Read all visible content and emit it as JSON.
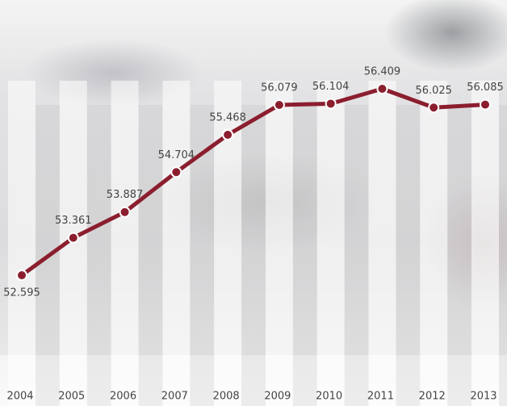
{
  "chart_data": {
    "type": "line",
    "categories": [
      "2004",
      "2005",
      "2006",
      "2007",
      "2008",
      "2009",
      "2010",
      "2011",
      "2012",
      "2013"
    ],
    "values": [
      52.595,
      53.361,
      53.887,
      54.704,
      55.468,
      56.079,
      56.104,
      56.409,
      56.025,
      56.085
    ],
    "color": "#8b1e2e"
  }
}
